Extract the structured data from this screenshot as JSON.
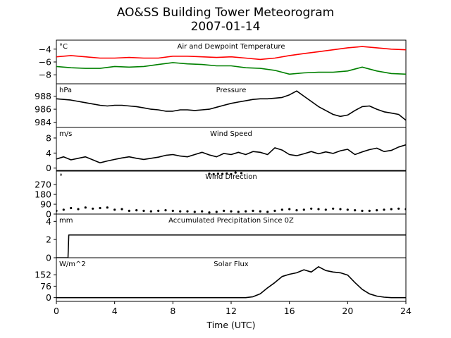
{
  "figure": {
    "title": "AO&SS Building Tower Meteorogram",
    "subtitle": "2007-01-14",
    "xlabel": "Time (UTC)"
  },
  "chart_data": [
    {
      "type": "line",
      "title": "Air and Dewpoint Temperature",
      "unit_label": "°C",
      "ylim": [
        -9.4,
        -2.6
      ],
      "yticks": [
        -4,
        -6,
        -8
      ],
      "ytick_labels": [
        "−4",
        "−6",
        "−8"
      ],
      "series": [
        {
          "color": "#ff0000",
          "x": [
            0,
            1,
            2,
            3,
            4,
            5,
            6,
            7,
            8,
            9,
            10,
            11,
            12,
            13,
            14,
            15,
            16,
            17,
            18,
            19,
            20,
            21,
            22,
            23,
            24
          ],
          "y": [
            -5.2,
            -5.0,
            -5.2,
            -5.4,
            -5.4,
            -5.3,
            -5.4,
            -5.4,
            -5.1,
            -5.1,
            -5.2,
            -5.3,
            -5.2,
            -5.4,
            -5.6,
            -5.4,
            -5.0,
            -4.7,
            -4.4,
            -4.1,
            -3.8,
            -3.6,
            -3.8,
            -4.0,
            -4.1
          ]
        },
        {
          "color": "#008000",
          "x": [
            0,
            1,
            2,
            3,
            4,
            5,
            6,
            7,
            8,
            9,
            10,
            11,
            12,
            13,
            14,
            15,
            16,
            17,
            18,
            19,
            20,
            21,
            22,
            23,
            24
          ],
          "y": [
            -6.7,
            -6.9,
            -7.0,
            -7.0,
            -6.7,
            -6.8,
            -6.7,
            -6.4,
            -6.1,
            -6.3,
            -6.4,
            -6.6,
            -6.6,
            -6.9,
            -7.0,
            -7.3,
            -7.9,
            -7.7,
            -7.6,
            -7.6,
            -7.4,
            -6.8,
            -7.4,
            -7.8,
            -7.9
          ]
        }
      ]
    },
    {
      "type": "line",
      "title": "Pressure",
      "unit_label": "hPa",
      "ylim": [
        983.2,
        989.9
      ],
      "yticks": [
        988,
        986,
        984
      ],
      "ytick_labels": [
        "988",
        "986",
        "984"
      ],
      "series": [
        {
          "color": "#000000",
          "x": [
            0,
            0.5,
            1,
            1.5,
            2,
            2.5,
            3,
            3.5,
            4,
            4.5,
            5,
            5.5,
            6,
            6.5,
            7,
            7.5,
            8,
            8.5,
            9,
            9.5,
            10,
            10.5,
            11,
            11.5,
            12,
            12.5,
            13,
            13.5,
            14,
            14.5,
            15,
            15.5,
            16,
            16.5,
            17,
            17.5,
            18,
            18.5,
            19,
            19.5,
            20,
            20.5,
            21,
            21.5,
            22,
            22.5,
            23,
            23.5,
            24
          ],
          "y": [
            987.6,
            987.5,
            987.4,
            987.2,
            987.0,
            986.8,
            986.6,
            986.5,
            986.6,
            986.6,
            986.5,
            986.4,
            986.2,
            986.0,
            985.9,
            985.7,
            985.7,
            985.9,
            985.9,
            985.8,
            985.9,
            986.0,
            986.3,
            986.6,
            986.9,
            987.1,
            987.3,
            987.5,
            987.6,
            987.6,
            987.7,
            987.8,
            988.2,
            988.8,
            988.0,
            987.2,
            986.4,
            985.8,
            985.2,
            984.9,
            985.1,
            985.8,
            986.4,
            986.5,
            986.0,
            985.6,
            985.4,
            985.2,
            984.3
          ]
        }
      ]
    },
    {
      "type": "line",
      "title": "Wind Speed",
      "unit_label": "m/s",
      "ylim": [
        -0.8,
        10.8
      ],
      "yticks": [
        8,
        4,
        0
      ],
      "ytick_labels": [
        "8",
        "4",
        "0"
      ],
      "series": [
        {
          "color": "#000000",
          "x": [
            0,
            0.5,
            1,
            1.5,
            2,
            2.5,
            3,
            3.5,
            4,
            4.5,
            5,
            5.5,
            6,
            6.5,
            7,
            7.5,
            8,
            8.5,
            9,
            9.5,
            10,
            10.5,
            11,
            11.5,
            12,
            12.5,
            13,
            13.5,
            14,
            14.5,
            15,
            15.5,
            16,
            16.5,
            17,
            17.5,
            18,
            18.5,
            19,
            19.5,
            20,
            20.5,
            21,
            21.5,
            22,
            22.5,
            23,
            23.5,
            24
          ],
          "y": [
            2.4,
            3.0,
            2.2,
            2.6,
            3.0,
            2.2,
            1.4,
            1.9,
            2.3,
            2.7,
            3.0,
            2.6,
            2.3,
            2.6,
            2.9,
            3.4,
            3.6,
            3.2,
            3.0,
            3.6,
            4.2,
            3.5,
            3.0,
            3.9,
            3.6,
            4.2,
            3.6,
            4.4,
            4.2,
            3.6,
            5.4,
            4.8,
            3.6,
            3.3,
            3.8,
            4.4,
            3.8,
            4.3,
            3.9,
            4.6,
            5.0,
            3.6,
            4.3,
            4.9,
            5.3,
            4.4,
            4.7,
            5.6,
            6.2
          ]
        }
      ]
    },
    {
      "type": "scatter",
      "title": "Wind Direction",
      "unit_label": "°",
      "ylim": [
        0,
        400
      ],
      "yticks": [
        270,
        180,
        90,
        0
      ],
      "ytick_labels": [
        "270",
        "180",
        "90",
        "0"
      ],
      "series": [
        {
          "color": "#000000",
          "x": [
            0,
            0.5,
            1,
            1.5,
            2,
            2.5,
            3,
            3.5,
            4,
            4.5,
            5,
            5.5,
            6,
            6.5,
            7,
            7.5,
            8,
            8.5,
            9,
            9.5,
            10,
            10.5,
            11,
            11.5,
            12,
            12.5,
            13,
            13.5,
            14,
            14.5,
            15,
            15.5,
            16,
            16.5,
            17,
            17.5,
            18,
            18.5,
            19,
            19.5,
            20,
            20.5,
            21,
            21.5,
            22,
            22.5,
            23,
            23.5,
            24
          ],
          "y": [
            30,
            40,
            55,
            45,
            60,
            50,
            55,
            60,
            40,
            45,
            30,
            35,
            30,
            25,
            30,
            35,
            30,
            25,
            25,
            20,
            25,
            15,
            20,
            30,
            25,
            20,
            25,
            30,
            25,
            20,
            30,
            40,
            45,
            35,
            40,
            50,
            45,
            40,
            50,
            45,
            40,
            35,
            30,
            30,
            35,
            40,
            45,
            50,
            45
          ]
        },
        {
          "color": "#000000",
          "x": [
            10.5,
            10.8,
            11.1,
            11.4,
            11.7,
            12.0,
            12.3,
            12.7
          ],
          "y": [
            370,
            365,
            370,
            368,
            372,
            365,
            380,
            375
          ]
        }
      ]
    },
    {
      "type": "line",
      "title": "Accumulated Precipitation Since 0Z",
      "unit_label": "mm",
      "ylim": [
        0,
        4.8
      ],
      "yticks": [
        4,
        2,
        0
      ],
      "ytick_labels": [
        "4",
        "2",
        "0"
      ],
      "series": [
        {
          "color": "#000000",
          "x": [
            0,
            0.8,
            0.85,
            24
          ],
          "y": [
            0,
            0,
            2.5,
            2.5
          ]
        }
      ]
    },
    {
      "type": "line",
      "title": "Solar Flux",
      "unit_label": "W/m^2",
      "ylim": [
        -25,
        265
      ],
      "yticks": [
        152,
        76,
        0
      ],
      "ytick_labels": [
        "152",
        "76",
        "0"
      ],
      "series": [
        {
          "color": "#000000",
          "x": [
            0,
            13.0,
            13.5,
            14.0,
            14.5,
            15.0,
            15.5,
            16.0,
            16.5,
            17.0,
            17.5,
            18.0,
            18.5,
            19.0,
            19.5,
            20.0,
            20.5,
            21.0,
            21.5,
            22.0,
            22.5,
            23.0,
            24
          ],
          "y": [
            0,
            0,
            6,
            25,
            65,
            100,
            140,
            155,
            165,
            185,
            170,
            205,
            180,
            170,
            165,
            150,
            100,
            55,
            25,
            10,
            3,
            0,
            0
          ]
        }
      ]
    }
  ],
  "xaxis": {
    "ticks": [
      0,
      4,
      8,
      12,
      16,
      20,
      24
    ],
    "tick_labels": [
      "0",
      "4",
      "8",
      "12",
      "16",
      "20",
      "24"
    ],
    "xlim": [
      0,
      24
    ]
  }
}
